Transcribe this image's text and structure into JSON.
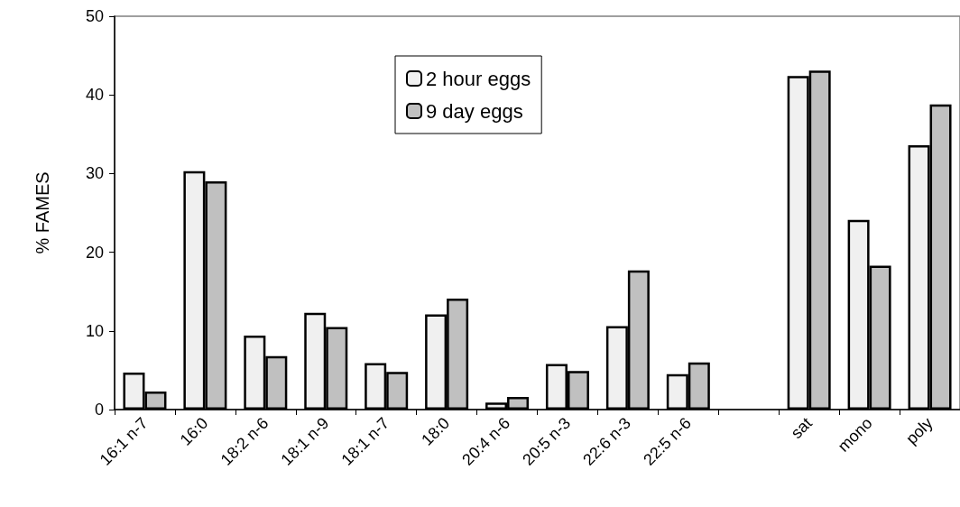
{
  "chart_data": {
    "type": "bar",
    "ylabel": "% FAMES",
    "categories": [
      "16:1 n-7",
      "16:0",
      "18:2 n-6",
      "18:1 n-9",
      "18:1 n-7",
      "18:0",
      "20:4 n-6",
      "20:5 n-3",
      "22:6 n-3",
      "22:5 n-6",
      null,
      "sat",
      "mono",
      "poly"
    ],
    "series": [
      {
        "name": "2 hour eggs",
        "color": "#f0f0f0",
        "values": [
          4.7,
          30.3,
          9.4,
          12.3,
          5.9,
          12.1,
          0.9,
          5.8,
          10.6,
          4.5,
          null,
          42.4,
          24.1,
          33.6
        ]
      },
      {
        "name": "9 day eggs",
        "color": "#c0c0c0",
        "values": [
          2.3,
          29.0,
          6.8,
          10.5,
          4.8,
          14.1,
          1.6,
          4.9,
          17.7,
          6.0,
          null,
          43.1,
          18.3,
          38.8
        ]
      }
    ],
    "ylim": [
      0,
      50
    ],
    "yticks": [
      0,
      10,
      20,
      30,
      40,
      50
    ],
    "grid": false,
    "legend": "top"
  }
}
